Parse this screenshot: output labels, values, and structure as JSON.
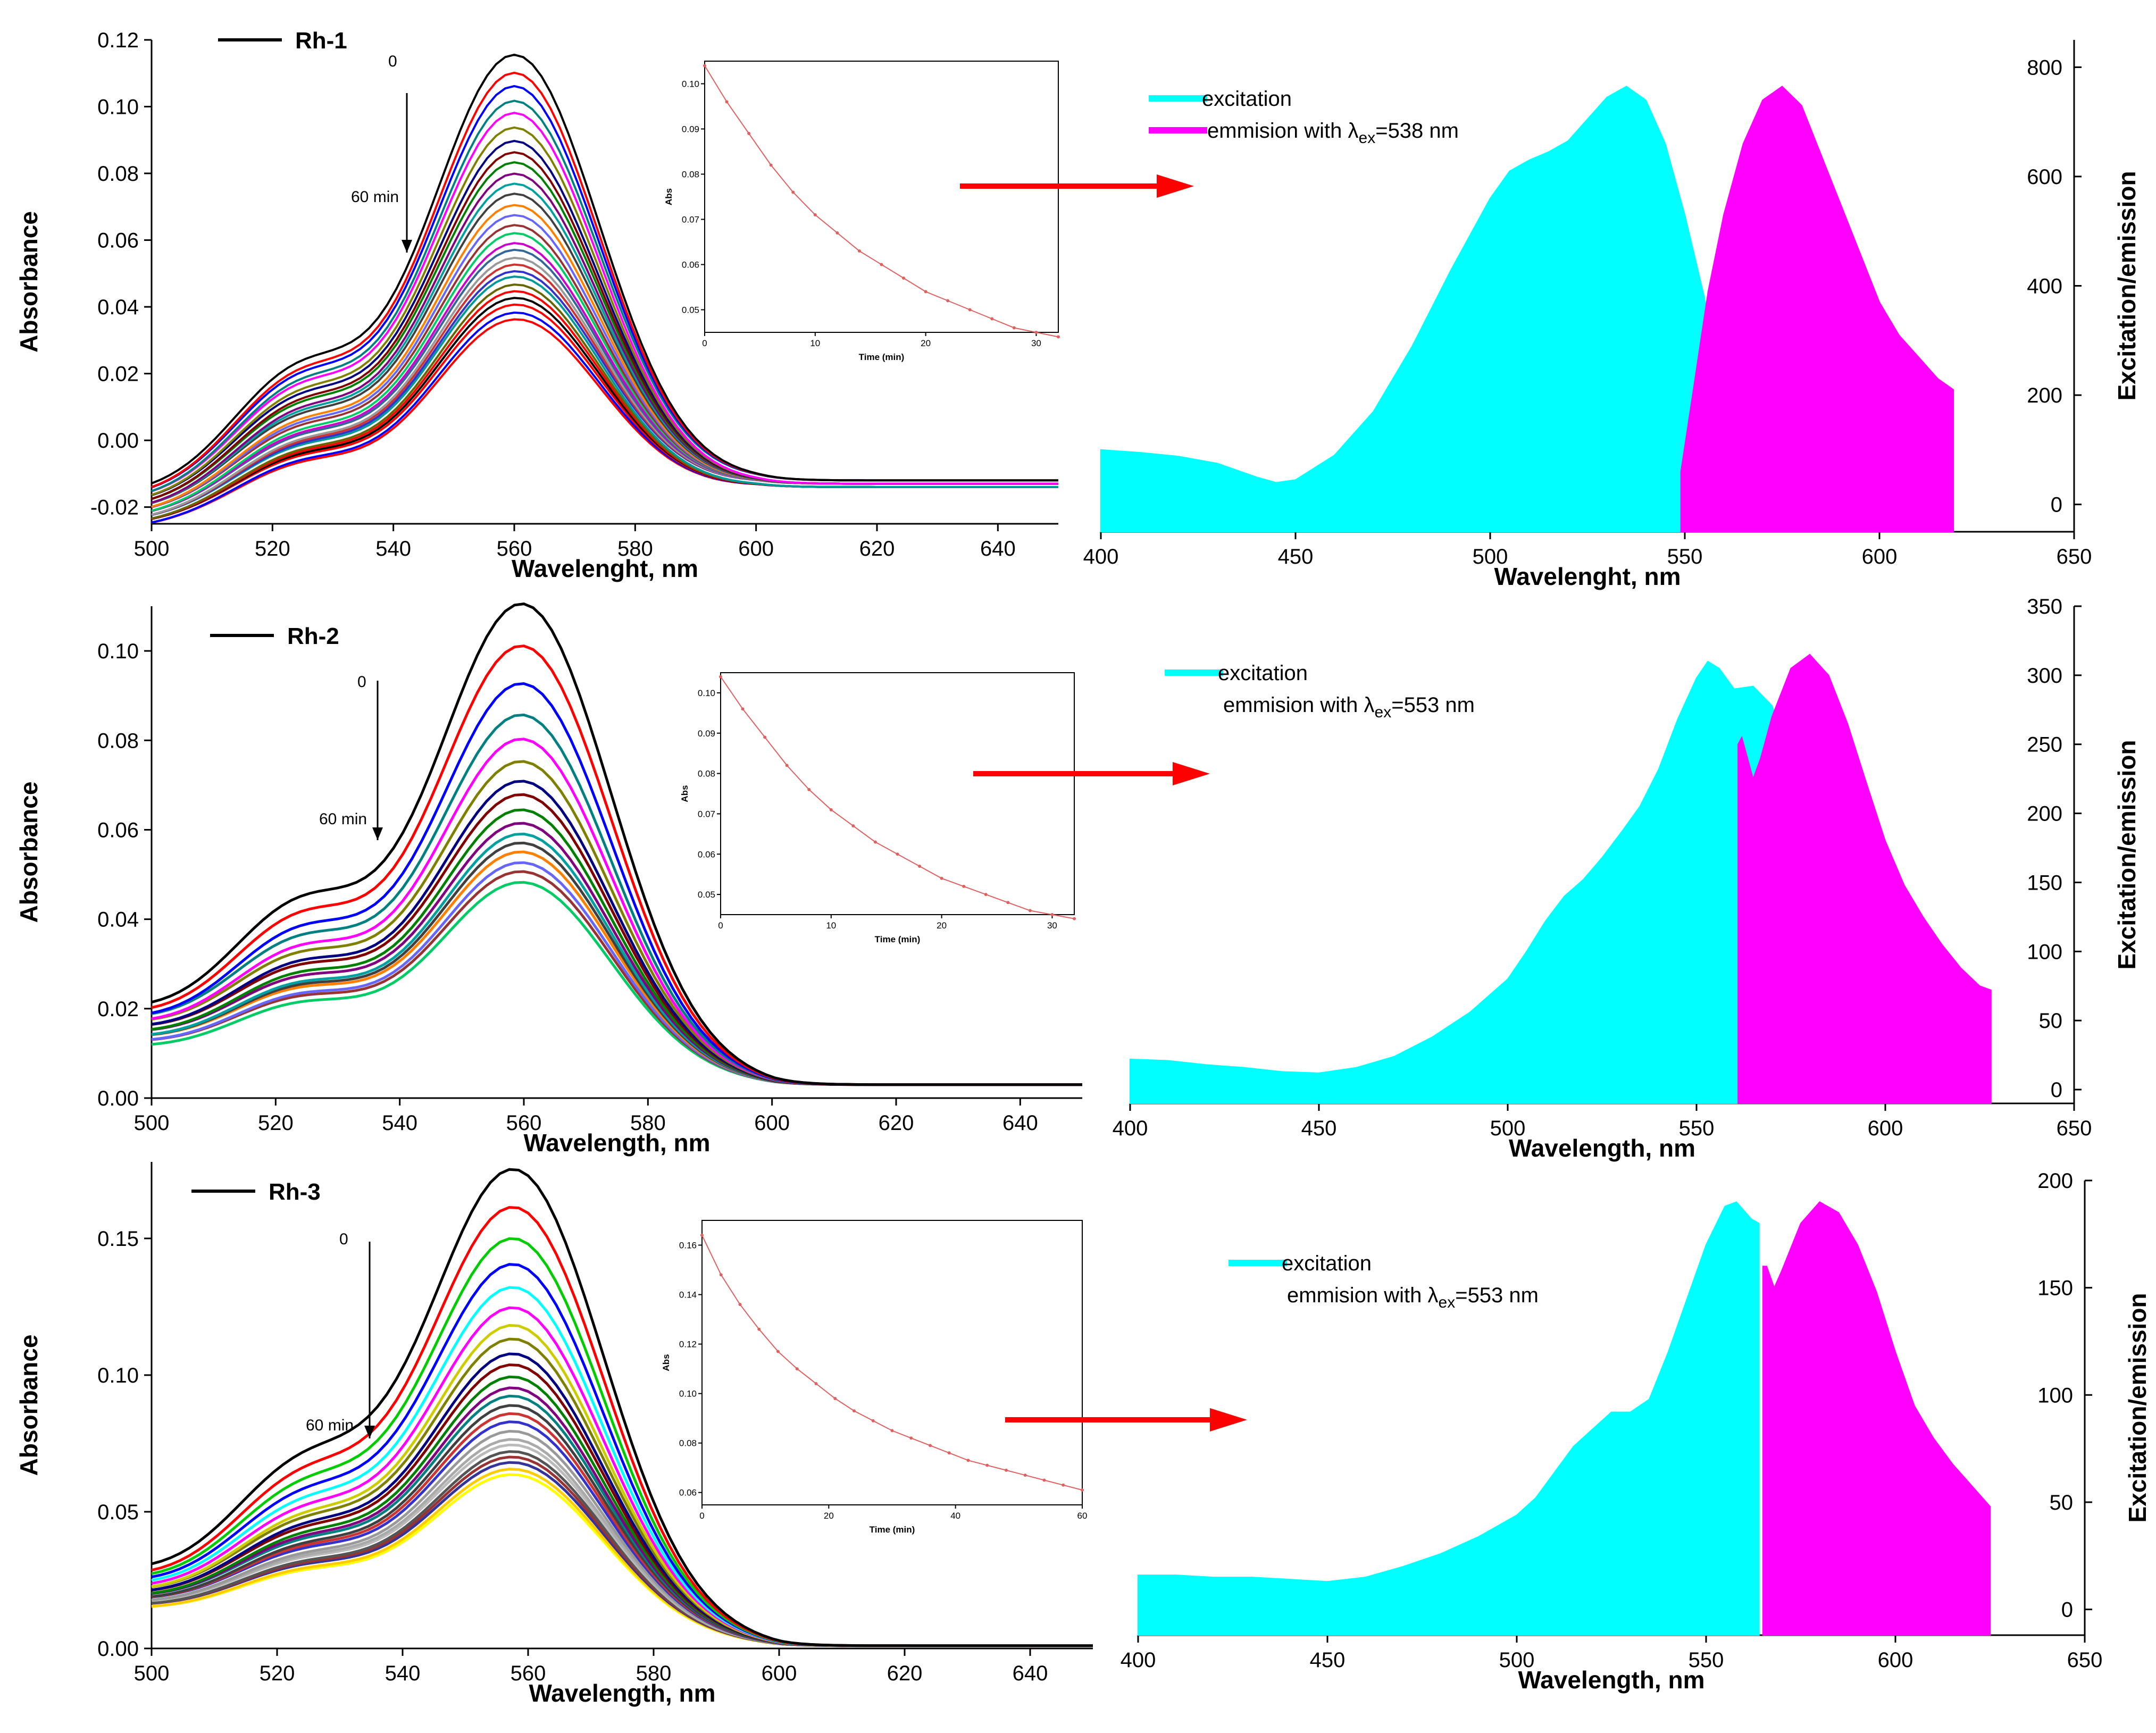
{
  "chart_data": [
    {
      "type": "line",
      "panel": "Rh-1 absorbance",
      "legend": "Rh-1",
      "xlabel": "Wavelenght, nm",
      "ylabel": "Absorbance",
      "xlim": [
        500,
        650
      ],
      "ylim": [
        -0.025,
        0.12
      ],
      "xticks": [
        500,
        520,
        540,
        560,
        580,
        600,
        620,
        640
      ],
      "yticks": [
        "-0.02",
        "0.00",
        "0.02",
        "0.04",
        "0.06",
        "0.08",
        "0.10",
        "0.12"
      ],
      "arrow_start_label": "0",
      "arrow_end_label": "60 min",
      "series": [
        {
          "peak_560": 0.117,
          "at_500": -0.016,
          "at_650": -0.012
        },
        {
          "peak_560": 0.112,
          "at_500": -0.017,
          "at_650": -0.012
        },
        {
          "peak_560": 0.108,
          "at_500": -0.017,
          "at_650": -0.012
        },
        {
          "peak_560": 0.104,
          "at_500": -0.018,
          "at_650": -0.012
        },
        {
          "peak_560": 0.1,
          "at_500": -0.018,
          "at_650": -0.013
        },
        {
          "peak_560": 0.096,
          "at_500": -0.019,
          "at_650": -0.013
        },
        {
          "peak_560": 0.092,
          "at_500": -0.019,
          "at_650": -0.013
        },
        {
          "peak_560": 0.089,
          "at_500": -0.02,
          "at_650": -0.013
        },
        {
          "peak_560": 0.086,
          "at_500": -0.02,
          "at_650": -0.013
        },
        {
          "peak_560": 0.083,
          "at_500": -0.021,
          "at_650": -0.013
        },
        {
          "peak_560": 0.08,
          "at_500": -0.021,
          "at_650": -0.013
        },
        {
          "peak_560": 0.077,
          "at_500": -0.021,
          "at_650": -0.013
        },
        {
          "peak_560": 0.074,
          "at_500": -0.022,
          "at_650": -0.013
        },
        {
          "peak_560": 0.071,
          "at_500": -0.022,
          "at_650": -0.013
        },
        {
          "peak_560": 0.068,
          "at_500": -0.022,
          "at_650": -0.013
        },
        {
          "peak_560": 0.066,
          "at_500": -0.023,
          "at_650": -0.013
        },
        {
          "peak_560": 0.063,
          "at_500": -0.023,
          "at_650": -0.013
        },
        {
          "peak_560": 0.061,
          "at_500": -0.023,
          "at_650": -0.013
        },
        {
          "peak_560": 0.059,
          "at_500": -0.024,
          "at_650": -0.013
        },
        {
          "peak_560": 0.057,
          "at_500": -0.024,
          "at_650": -0.013
        },
        {
          "peak_560": 0.055,
          "at_500": -0.024,
          "at_650": -0.013
        },
        {
          "peak_560": 0.053,
          "at_500": -0.024,
          "at_650": -0.014
        },
        {
          "peak_560": 0.051,
          "at_500": -0.025,
          "at_650": -0.014
        },
        {
          "peak_560": 0.049,
          "at_500": -0.025,
          "at_650": -0.014
        },
        {
          "peak_560": 0.047,
          "at_500": -0.025,
          "at_650": -0.014
        },
        {
          "peak_560": 0.045,
          "at_500": -0.025,
          "at_650": -0.014
        },
        {
          "peak_560": 0.043,
          "at_500": -0.026,
          "at_650": -0.014
        },
        {
          "peak_560": 0.041,
          "at_500": -0.026,
          "at_650": -0.014
        }
      ],
      "inset": {
        "xlabel": "Time (min)",
        "ylabel": "Abs",
        "xlim": [
          0,
          32
        ],
        "ylim": [
          0.045,
          0.105
        ],
        "xticks": [
          "0",
          "10",
          "20",
          "30"
        ],
        "yticks": [
          "0.05",
          "0.06",
          "0.07",
          "0.08",
          "0.09",
          "0.10"
        ],
        "x": [
          0,
          2,
          4,
          6,
          8,
          10,
          12,
          14,
          16,
          18,
          20,
          22,
          24,
          26,
          28,
          30,
          32
        ],
        "y": [
          0.104,
          0.096,
          0.089,
          0.082,
          0.076,
          0.071,
          0.067,
          0.063,
          0.06,
          0.057,
          0.054,
          0.052,
          0.05,
          0.048,
          0.046,
          0.045,
          0.044
        ]
      }
    },
    {
      "type": "area",
      "panel": "Rh-1 excitation/emission",
      "xlabel": "Wavelenght, nm",
      "ylabel": "Excitation/emission",
      "xlim": [
        400,
        650
      ],
      "ylim": [
        -50,
        850
      ],
      "xticks": [
        400,
        450,
        500,
        550,
        600,
        650
      ],
      "yticks": [
        0,
        200,
        400,
        600,
        800
      ],
      "legend_entries": [
        "excitation",
        "emmision with λex=538 nm"
      ],
      "series": [
        {
          "name": "excitation",
          "color": "#00ffff",
          "x": [
            400,
            410,
            420,
            430,
            440,
            445,
            450,
            460,
            470,
            480,
            490,
            500,
            505,
            510,
            515,
            520,
            525,
            530,
            535,
            540,
            545,
            550,
            555,
            557
          ],
          "y": [
            100,
            95,
            88,
            75,
            50,
            40,
            45,
            90,
            170,
            290,
            430,
            560,
            610,
            630,
            645,
            665,
            705,
            745,
            765,
            740,
            660,
            530,
            380,
            300
          ]
        },
        {
          "name": "emmision with λex=538 nm",
          "color": "#ff00ff",
          "x": [
            549,
            552,
            556,
            560,
            565,
            570,
            575,
            580,
            585,
            590,
            595,
            600,
            605,
            610,
            615,
            619
          ],
          "y": [
            60,
            200,
            390,
            530,
            660,
            740,
            765,
            730,
            640,
            550,
            460,
            370,
            310,
            270,
            230,
            210
          ]
        }
      ]
    },
    {
      "type": "line",
      "panel": "Rh-2 absorbance",
      "legend": "Rh-2",
      "xlabel": "Wavelength, nm",
      "ylabel": "Absorbance",
      "xlim": [
        500,
        650
      ],
      "ylim": [
        0,
        0.11
      ],
      "xticks": [
        500,
        520,
        540,
        560,
        580,
        600,
        620,
        640
      ],
      "yticks": [
        "0.00",
        "0.02",
        "0.04",
        "0.06",
        "0.08",
        "0.10"
      ],
      "arrow_start_label": "0",
      "arrow_end_label": "60 min",
      "series": [
        {
          "peak_560": 0.104,
          "at_500": 0.019,
          "at_650": 0.003
        },
        {
          "peak_560": 0.095,
          "at_500": 0.018,
          "at_650": 0.003
        },
        {
          "peak_560": 0.087,
          "at_500": 0.017,
          "at_650": 0.003
        },
        {
          "peak_560": 0.08,
          "at_500": 0.017,
          "at_650": 0.003
        },
        {
          "peak_560": 0.075,
          "at_500": 0.016,
          "at_650": 0.003
        },
        {
          "peak_560": 0.07,
          "at_500": 0.016,
          "at_650": 0.003
        },
        {
          "peak_560": 0.066,
          "at_500": 0.015,
          "at_650": 0.003
        },
        {
          "peak_560": 0.063,
          "at_500": 0.015,
          "at_650": 0.003
        },
        {
          "peak_560": 0.06,
          "at_500": 0.014,
          "at_650": 0.003
        },
        {
          "peak_560": 0.057,
          "at_500": 0.014,
          "at_650": 0.003
        },
        {
          "peak_560": 0.055,
          "at_500": 0.013,
          "at_650": 0.003
        },
        {
          "peak_560": 0.053,
          "at_500": 0.013,
          "at_650": 0.003
        },
        {
          "peak_560": 0.051,
          "at_500": 0.013,
          "at_650": 0.003
        },
        {
          "peak_560": 0.049,
          "at_500": 0.012,
          "at_650": 0.003
        },
        {
          "peak_560": 0.047,
          "at_500": 0.012,
          "at_650": 0.003
        },
        {
          "peak_560": 0.045,
          "at_500": 0.011,
          "at_650": 0.003
        }
      ],
      "inset": {
        "xlabel": "Time (min)",
        "ylabel": "Abs",
        "xlim": [
          0,
          32
        ],
        "ylim": [
          0.045,
          0.105
        ],
        "xticks": [
          "0",
          "10",
          "20",
          "30"
        ],
        "yticks": [
          "0.05",
          "0.06",
          "0.07",
          "0.08",
          "0.09",
          "0.10"
        ],
        "x": [
          0,
          2,
          4,
          6,
          8,
          10,
          12,
          14,
          16,
          18,
          20,
          22,
          24,
          26,
          28,
          30,
          32
        ],
        "y": [
          0.104,
          0.096,
          0.089,
          0.082,
          0.076,
          0.071,
          0.067,
          0.063,
          0.06,
          0.057,
          0.054,
          0.052,
          0.05,
          0.048,
          0.046,
          0.045,
          0.044
        ]
      }
    },
    {
      "type": "area",
      "panel": "Rh-2 excitation/emission",
      "xlabel": "Wavelength, nm",
      "ylabel": "Excitation/emission",
      "xlim": [
        400,
        650
      ],
      "ylim": [
        -10,
        350
      ],
      "xticks": [
        400,
        450,
        500,
        550,
        600,
        650
      ],
      "yticks": [
        0,
        50,
        100,
        150,
        200,
        250,
        300,
        350
      ],
      "legend_entries": [
        "excitation",
        "emmision with λex=553 nm"
      ],
      "series": [
        {
          "name": "excitation",
          "color": "#00ffff",
          "x": [
            400,
            410,
            420,
            430,
            440,
            450,
            460,
            470,
            480,
            490,
            500,
            505,
            510,
            515,
            520,
            525,
            530,
            535,
            540,
            545,
            550,
            553,
            556,
            560,
            565,
            570,
            573
          ],
          "y": [
            22,
            21,
            18,
            16,
            13,
            12,
            16,
            24,
            38,
            56,
            80,
            100,
            122,
            140,
            152,
            168,
            186,
            205,
            232,
            268,
            298,
            310,
            305,
            290,
            292,
            278,
            255
          ]
        },
        {
          "name": "emmision with λex=553 nm",
          "color": "#ff00ff",
          "x": [
            561,
            562,
            565,
            567,
            570,
            575,
            580,
            585,
            590,
            595,
            600,
            605,
            610,
            615,
            620,
            625,
            628
          ],
          "y": [
            250,
            255,
            225,
            240,
            270,
            305,
            315,
            300,
            265,
            222,
            180,
            148,
            125,
            105,
            88,
            75,
            72
          ]
        }
      ]
    },
    {
      "type": "line",
      "panel": "Rh-3 absorbance",
      "legend": "Rh-3",
      "xlabel": "Wavelength, nm",
      "ylabel": "Absorbance",
      "xlim": [
        500,
        650
      ],
      "ylim": [
        0,
        0.178
      ],
      "xticks": [
        500,
        520,
        540,
        560,
        580,
        600,
        620,
        640
      ],
      "yticks": [
        "0.00",
        "0.05",
        "0.10",
        "0.15"
      ],
      "arrow_start_label": "0",
      "arrow_end_label": "60 min",
      "series": [
        {
          "peak_560": 0.164,
          "at_500": 0.027,
          "at_650": 0.001
        },
        {
          "peak_560": 0.151,
          "at_500": 0.025,
          "at_650": 0.001
        },
        {
          "peak_560": 0.14,
          "at_500": 0.024,
          "at_650": 0.001
        },
        {
          "peak_560": 0.131,
          "at_500": 0.023,
          "at_650": 0.001
        },
        {
          "peak_560": 0.123,
          "at_500": 0.022,
          "at_650": 0.001
        },
        {
          "peak_560": 0.116,
          "at_500": 0.021,
          "at_650": 0.001
        },
        {
          "peak_560": 0.11,
          "at_500": 0.02,
          "at_650": 0.001
        },
        {
          "peak_560": 0.105,
          "at_500": 0.02,
          "at_650": 0.001
        },
        {
          "peak_560": 0.1,
          "at_500": 0.019,
          "at_650": 0.001
        },
        {
          "peak_560": 0.096,
          "at_500": 0.019,
          "at_650": 0.001
        },
        {
          "peak_560": 0.092,
          "at_500": 0.018,
          "at_650": 0.001
        },
        {
          "peak_560": 0.088,
          "at_500": 0.018,
          "at_650": 0.001
        },
        {
          "peak_560": 0.085,
          "at_500": 0.018,
          "at_650": 0.001
        },
        {
          "peak_560": 0.082,
          "at_500": 0.017,
          "at_650": 0.001
        },
        {
          "peak_560": 0.079,
          "at_500": 0.017,
          "at_650": 0.001
        },
        {
          "peak_560": 0.076,
          "at_500": 0.017,
          "at_650": 0.001
        },
        {
          "peak_560": 0.073,
          "at_500": 0.016,
          "at_650": 0.001
        },
        {
          "peak_560": 0.07,
          "at_500": 0.016,
          "at_650": 0.001
        },
        {
          "peak_560": 0.068,
          "at_500": 0.016,
          "at_650": 0.001
        },
        {
          "peak_560": 0.066,
          "at_500": 0.015,
          "at_650": 0.001
        },
        {
          "peak_560": 0.064,
          "at_500": 0.015,
          "at_650": 0.001
        },
        {
          "peak_560": 0.062,
          "at_500": 0.015,
          "at_650": 0.001
        },
        {
          "peak_560": 0.06,
          "at_500": 0.014,
          "at_650": 0.001
        },
        {
          "peak_560": 0.058,
          "at_500": 0.014,
          "at_650": 0.001
        }
      ],
      "inset": {
        "xlabel": "Time (min)",
        "ylabel": "Abs",
        "xlim": [
          0,
          60
        ],
        "ylim": [
          0.055,
          0.17
        ],
        "xticks": [
          "0",
          "20",
          "40",
          "60"
        ],
        "yticks": [
          "0.06",
          "0.08",
          "0.10",
          "0.12",
          "0.14",
          "0.16"
        ],
        "x": [
          0,
          3,
          6,
          9,
          12,
          15,
          18,
          21,
          24,
          27,
          30,
          33,
          36,
          39,
          42,
          45,
          48,
          51,
          54,
          57,
          60
        ],
        "y": [
          0.164,
          0.148,
          0.136,
          0.126,
          0.117,
          0.11,
          0.104,
          0.098,
          0.093,
          0.089,
          0.085,
          0.082,
          0.079,
          0.076,
          0.073,
          0.071,
          0.069,
          0.067,
          0.065,
          0.063,
          0.061
        ]
      }
    },
    {
      "type": "area",
      "panel": "Rh-3 excitation/emission",
      "xlabel": "Wavelength, nm",
      "ylabel": "Excitation/emission",
      "xlim": [
        400,
        650
      ],
      "ylim": [
        -12,
        200
      ],
      "xticks": [
        400,
        450,
        500,
        550,
        600,
        650
      ],
      "yticks": [
        0,
        50,
        100,
        150,
        200
      ],
      "legend_entries": [
        "excitation",
        "emmision with λex=553 nm"
      ],
      "series": [
        {
          "name": "excitation",
          "color": "#00ffff",
          "x": [
            400,
            410,
            420,
            430,
            440,
            450,
            460,
            470,
            480,
            490,
            500,
            505,
            510,
            515,
            520,
            525,
            530,
            535,
            540,
            545,
            550,
            555,
            558,
            562,
            564
          ],
          "y": [
            16,
            16,
            15,
            15,
            14,
            13,
            15,
            20,
            26,
            34,
            44,
            52,
            64,
            76,
            84,
            92,
            92,
            98,
            120,
            145,
            170,
            188,
            190,
            182,
            180
          ]
        },
        {
          "name": "emmision with λex=553 nm",
          "color": "#ff00ff",
          "x": [
            565,
            566,
            568,
            570,
            575,
            580,
            585,
            590,
            595,
            600,
            605,
            610,
            615,
            620,
            625
          ],
          "y": [
            160,
            160,
            150,
            158,
            180,
            190,
            185,
            170,
            148,
            120,
            95,
            80,
            68,
            58,
            48
          ]
        }
      ]
    }
  ]
}
